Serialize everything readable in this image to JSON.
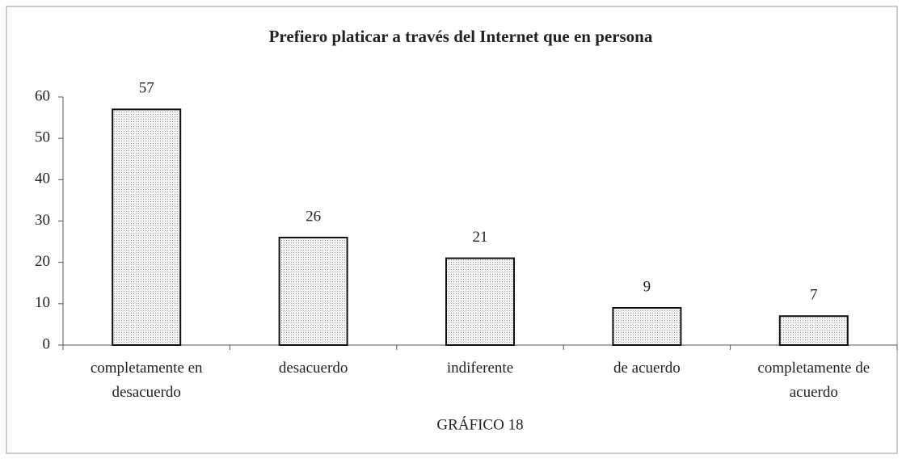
{
  "chart_data": {
    "type": "bar",
    "title": "Prefiero platicar a través del Internet que en persona",
    "x_label": "GRÁFICO 18",
    "categories": [
      "completamente en desacuerdo",
      "desacuerdo",
      "indiferente",
      "de acuerdo",
      "completamente de acuerdo"
    ],
    "values": [
      57,
      26,
      21,
      9,
      7
    ],
    "color": "#e6e6e6",
    "ylim": [
      0,
      60
    ],
    "yticks": [
      0,
      10,
      20,
      30,
      40,
      50,
      60
    ],
    "grid": false
  }
}
